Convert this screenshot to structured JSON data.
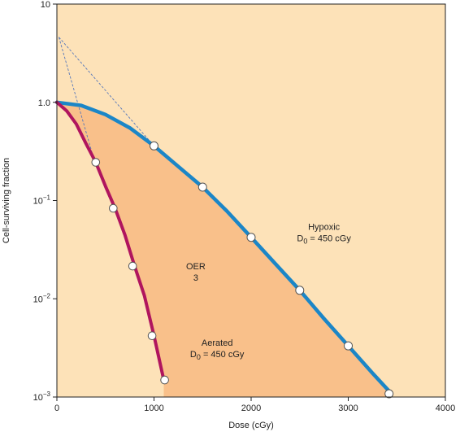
{
  "chart_data": {
    "type": "line",
    "xlabel": "Dose (cGy)",
    "ylabel": "Cell-surviving fraction",
    "xlim": [
      0,
      4000
    ],
    "ylim": [
      0.001,
      10
    ],
    "yscale": "log",
    "x_ticks": [
      0,
      1000,
      2000,
      3000,
      4000
    ],
    "x_tick_labels": [
      "0",
      "1000",
      "2000",
      "3000",
      "4000"
    ],
    "y_ticks": [
      0.001,
      0.01,
      0.1,
      1,
      10
    ],
    "y_tick_labels": [
      {
        "base": "10",
        "exp": "−3"
      },
      {
        "base": "10",
        "exp": "−2"
      },
      {
        "base": "10",
        "exp": "−1"
      },
      {
        "base": "1.0",
        "exp": ""
      },
      {
        "base": "10",
        "exp": ""
      }
    ],
    "colors": {
      "background": "#fde2b8",
      "between_fill": "#f9c08a",
      "hypoxic": "#1b86c7",
      "aerated": "#b0155e",
      "extrapolation": "#5577bb"
    },
    "series": [
      {
        "key": "hypoxic",
        "curve": [
          [
            0,
            1.0
          ],
          [
            250,
            0.93
          ],
          [
            500,
            0.75
          ],
          [
            750,
            0.55
          ],
          [
            1000,
            0.36
          ],
          [
            1250,
            0.222
          ],
          [
            1500,
            0.137
          ],
          [
            1750,
            0.0782
          ],
          [
            2000,
            0.0422
          ],
          [
            2250,
            0.0227
          ],
          [
            2500,
            0.0122
          ],
          [
            2750,
            0.00629
          ],
          [
            3000,
            0.00332
          ],
          [
            3250,
            0.00175
          ],
          [
            3420,
            0.00115
          ]
        ],
        "points": [
          [
            1000,
            0.36
          ],
          [
            1500,
            0.137
          ],
          [
            2000,
            0.0422
          ],
          [
            2500,
            0.0122
          ],
          [
            3000,
            0.00332
          ],
          [
            3420,
            0.00108
          ]
        ]
      },
      {
        "key": "aerated",
        "curve": [
          [
            0,
            1.0
          ],
          [
            100,
            0.82
          ],
          [
            200,
            0.6
          ],
          [
            300,
            0.38
          ],
          [
            400,
            0.245
          ],
          [
            500,
            0.14
          ],
          [
            600,
            0.083
          ],
          [
            700,
            0.045
          ],
          [
            800,
            0.0215
          ],
          [
            900,
            0.0108
          ],
          [
            1000,
            0.0042
          ],
          [
            1100,
            0.00149
          ]
        ],
        "points": [
          [
            400,
            0.245
          ],
          [
            580,
            0.0835
          ],
          [
            780,
            0.0215
          ],
          [
            980,
            0.0042
          ],
          [
            1110,
            0.00149
          ]
        ]
      }
    ],
    "extrapolation_lines": [
      [
        [
          20,
          4.6
        ],
        [
          1000,
          0.36
        ]
      ],
      [
        [
          20,
          4.6
        ],
        [
          390,
          0.245
        ]
      ]
    ],
    "annotations": [
      {
        "key": "hypoxic",
        "lines": [
          "Hypoxic",
          "D0 = 450 cGy"
        ],
        "at": [
          2750,
          0.044
        ]
      },
      {
        "key": "oer",
        "lines": [
          "OER",
          "3"
        ],
        "at": [
          1430,
          0.0175
        ]
      },
      {
        "key": "aerated",
        "lines": [
          "Aerated",
          "D0 = 450 cGy"
        ],
        "at": [
          1650,
          0.0029
        ]
      }
    ],
    "annotation_text": {
      "hypoxic_title": "Hypoxic",
      "hypoxic_d": "D",
      "hypoxic_sub": "0",
      "hypoxic_value": " = 450 cGy",
      "oer_title": "OER",
      "oer_value": "3",
      "aerated_title": "Aerated",
      "aerated_d": "D",
      "aerated_sub": "0",
      "aerated_value": " = 450 cGy"
    }
  }
}
